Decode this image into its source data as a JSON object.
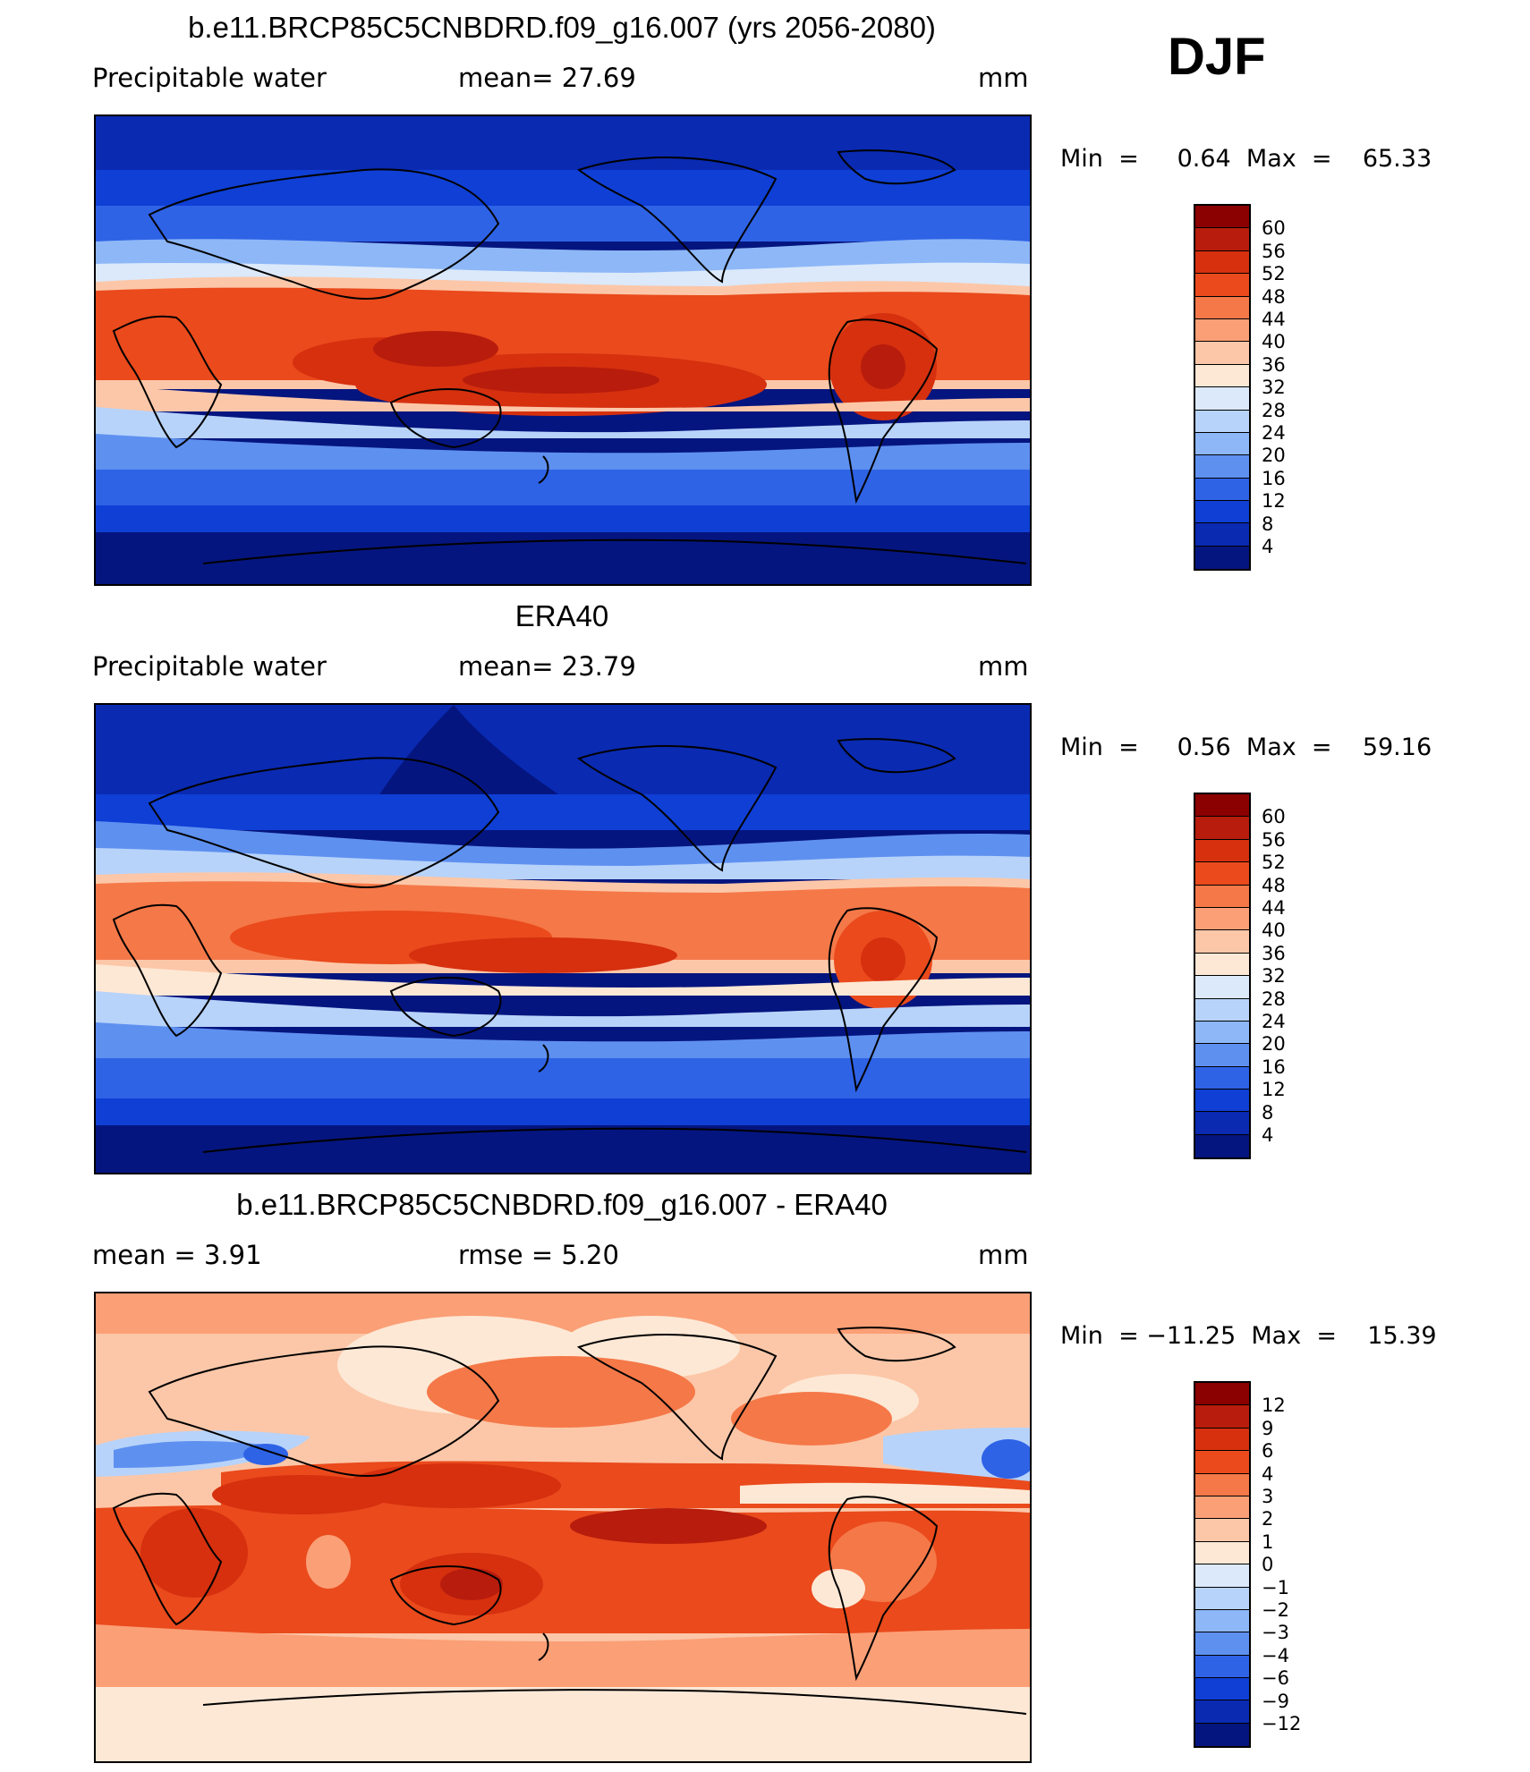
{
  "season": "DJF",
  "panels": [
    {
      "title": "b.e11.BRCP85C5CNBDRD.f09_g16.007 (yrs 2056-2080)",
      "sub_left": "Precipitable  water",
      "sub_mid": "mean=   27.69",
      "units": "mm",
      "minmax": "Min  =     0.64  Max  =    65.33",
      "colorbar_labels": [
        "60",
        "56",
        "52",
        "48",
        "44",
        "40",
        "36",
        "32",
        "28",
        "24",
        "20",
        "16",
        "12",
        "8",
        "4"
      ],
      "colorbar_colors": [
        "#8b0000",
        "#b71c0c",
        "#d6300f",
        "#ea4a1c",
        "#f57848",
        "#fb9f76",
        "#fcc7a8",
        "#fde8d5",
        "#dbe9fb",
        "#b7d3fa",
        "#8db7f7",
        "#5e90f0",
        "#2f63e6",
        "#0f3fd5",
        "#0a2ab2",
        "#05157f"
      ]
    },
    {
      "title": "ERA40",
      "sub_left": "Precipitable  water",
      "sub_mid": "mean=   23.79",
      "units": "mm",
      "minmax": "Min  =     0.56  Max  =    59.16",
      "colorbar_labels": [
        "60",
        "56",
        "52",
        "48",
        "44",
        "40",
        "36",
        "32",
        "28",
        "24",
        "20",
        "16",
        "12",
        "8",
        "4"
      ],
      "colorbar_colors": [
        "#8b0000",
        "#b71c0c",
        "#d6300f",
        "#ea4a1c",
        "#f57848",
        "#fb9f76",
        "#fcc7a8",
        "#fde8d5",
        "#dbe9fb",
        "#b7d3fa",
        "#8db7f7",
        "#5e90f0",
        "#2f63e6",
        "#0f3fd5",
        "#0a2ab2",
        "#05157f"
      ]
    },
    {
      "title": "b.e11.BRCP85C5CNBDRD.f09_g16.007 - ERA40",
      "sub_left": "mean  =     3.91",
      "sub_mid": "rmse  =     5.20",
      "units": "mm",
      "minmax": "Min  = −11.25  Max  =    15.39",
      "colorbar_labels": [
        "12",
        "9",
        "6",
        "4",
        "3",
        "2",
        "1",
        "0",
        "−1",
        "−2",
        "−3",
        "−4",
        "−6",
        "−9",
        "−12"
      ],
      "colorbar_colors": [
        "#8b0000",
        "#b71c0c",
        "#d6300f",
        "#ea4a1c",
        "#f57848",
        "#fb9f76",
        "#fcc7a8",
        "#fde8d5",
        "#dbe9fb",
        "#b7d3fa",
        "#8db7f7",
        "#5e90f0",
        "#2f63e6",
        "#0f3fd5",
        "#0a2ab2",
        "#05157f"
      ]
    }
  ]
}
